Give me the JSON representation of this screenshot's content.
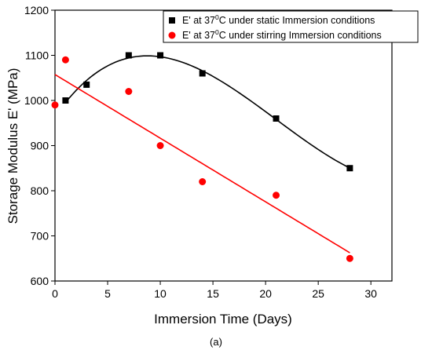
{
  "chart_data": {
    "type": "scatter",
    "xlabel": "Immersion Time (Days)",
    "ylabel": "Storage Modulus E' (MPa)",
    "caption": "(a)",
    "xlim": [
      0,
      32
    ],
    "ylim": [
      600,
      1200
    ],
    "x_ticks": [
      0,
      5,
      10,
      15,
      20,
      25,
      30
    ],
    "y_ticks": [
      600,
      700,
      800,
      900,
      1000,
      1100,
      1200
    ],
    "legend_position": "top-right",
    "series": [
      {
        "name": "E' at 37⁰C under static Immersion conditions",
        "legend_parts": [
          "E' at 37",
          "0",
          "C under static Immersion conditions"
        ],
        "marker": "square",
        "color": "#000000",
        "x": [
          1,
          3,
          7,
          10,
          14,
          21,
          28
        ],
        "y": [
          1000,
          1035,
          1100,
          1100,
          1060,
          960,
          850
        ],
        "fit": "polynomial"
      },
      {
        "name": "E' at 37⁰C under stirring Immersion conditions",
        "legend_parts": [
          "E' at 37",
          "0",
          "C under stirring Immersion conditions"
        ],
        "marker": "circle",
        "color": "#ff0000",
        "x": [
          0,
          1,
          7,
          10,
          14,
          21,
          28
        ],
        "y": [
          990,
          1090,
          1020,
          900,
          820,
          790,
          650
        ],
        "fit": "linear"
      }
    ]
  }
}
